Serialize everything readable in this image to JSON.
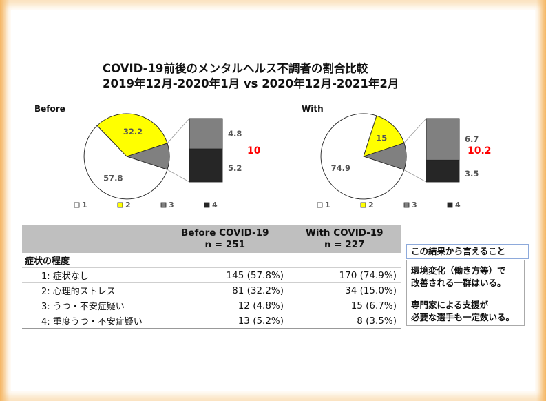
{
  "header": {
    "line1": "COVID-19前後のメンタルヘルス不調者の割合比較",
    "line2": "2019年12月-2020年1月 vs 2020年12月-2021年2月"
  },
  "chart_data": [
    {
      "type": "pie",
      "panel_label": "Before",
      "categories": [
        "1",
        "2",
        "3",
        "4"
      ],
      "values": [
        57.8,
        32.2,
        4.8,
        5.2
      ],
      "bar_of_pie": {
        "segments": [
          4.8,
          5.2
        ],
        "total_label": "10"
      },
      "colors": [
        "#ffffff",
        "#ffff00",
        "#808080",
        "#262626"
      ],
      "legend": [
        "1",
        "2",
        "3",
        "4"
      ],
      "legend_position": "bottom"
    },
    {
      "type": "pie",
      "panel_label": "With",
      "categories": [
        "1",
        "2",
        "3",
        "4"
      ],
      "values": [
        74.9,
        15,
        6.7,
        3.5
      ],
      "bar_of_pie": {
        "segments": [
          6.7,
          3.5
        ],
        "total_label": "10.2"
      },
      "colors": [
        "#ffffff",
        "#ffff00",
        "#808080",
        "#262626"
      ],
      "legend": [
        "1",
        "2",
        "3",
        "4"
      ],
      "legend_position": "bottom"
    }
  ],
  "table": {
    "col_before": "Before COVID-19\nn = 251",
    "col_with": "With COVID-19\nn = 227",
    "category": "症状の程度",
    "rows": [
      {
        "label": "1: 症状なし",
        "before": "145 (57.8%)",
        "with": "170 (74.9%)"
      },
      {
        "label": "2: 心理的ストレス",
        "before": "81 (32.2%)",
        "with": "34 (15.0%)"
      },
      {
        "label": "3: うつ・不安症疑い",
        "before": "12 (4.8%)",
        "with": "15 (6.7%)"
      },
      {
        "label": "4: 重度うつ・不安症疑い",
        "before": "13 (5.2%)",
        "with": "8 (3.5%)"
      }
    ]
  },
  "note": {
    "heading": "この結果から言えること",
    "para1": "環境変化（働き方等）で\n改善される一群はいる。",
    "para2": "専門家による支援が\n必要な選手も一定数いる。"
  },
  "colors": {
    "total_label": "#ff0000",
    "table_header": "#bfbfbf",
    "frame": "#f5b765"
  }
}
